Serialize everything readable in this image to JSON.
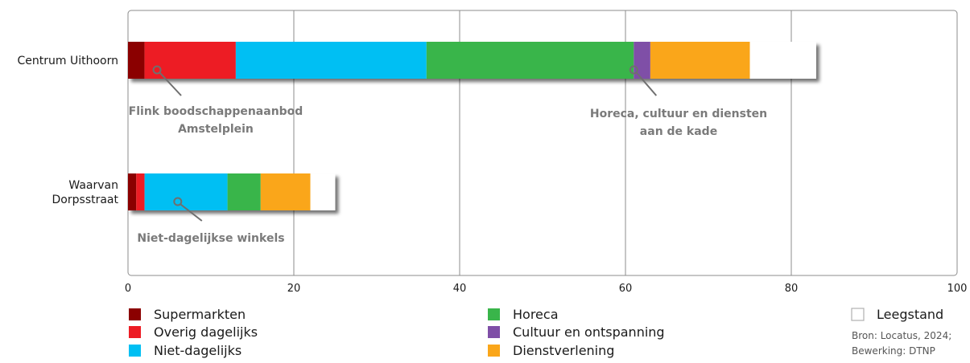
{
  "chart_data": {
    "type": "bar",
    "orientation": "horizontal",
    "stacked": true,
    "categories": [
      "Centrum Uithoorn",
      [
        "Waarvan",
        "Dorpsstraat"
      ]
    ],
    "series": [
      {
        "name": "Supermarkten",
        "color": "#8b0000",
        "values": [
          2,
          1
        ]
      },
      {
        "name": "Overig dagelijks",
        "color": "#ed1c24",
        "values": [
          11,
          1
        ]
      },
      {
        "name": "Niet-dagelijks",
        "color": "#00bff3",
        "values": [
          23,
          10
        ]
      },
      {
        "name": "Horeca",
        "color": "#39b54a",
        "values": [
          25,
          4
        ]
      },
      {
        "name": "Cultuur en ontspanning",
        "color": "#7f4fa7",
        "values": [
          2,
          0
        ]
      },
      {
        "name": "Dienstverlening",
        "color": "#faa61a",
        "values": [
          12,
          6
        ]
      },
      {
        "name": "Leegstand",
        "color": "#ffffff",
        "values": [
          8,
          3
        ]
      }
    ],
    "xlim": [
      0,
      100
    ],
    "xticks": [
      0,
      20,
      40,
      60,
      80,
      100
    ],
    "grid": true,
    "annotations": [
      {
        "lines": [
          "Flink boodschappenaanbod",
          "Amstelplein"
        ],
        "category": 0,
        "value": 3.5
      },
      {
        "lines": [
          "Horeca, cultuur en diensten",
          "aan de kade"
        ],
        "category": 0,
        "value": 61
      },
      {
        "lines": [
          "Niet-dagelijkse winkels"
        ],
        "category": 1,
        "value": 6
      }
    ],
    "legend_position": "bottom"
  },
  "source": {
    "line1": "Bron: Locatus, 2024;",
    "line2": "Bewerking: DTNP"
  }
}
